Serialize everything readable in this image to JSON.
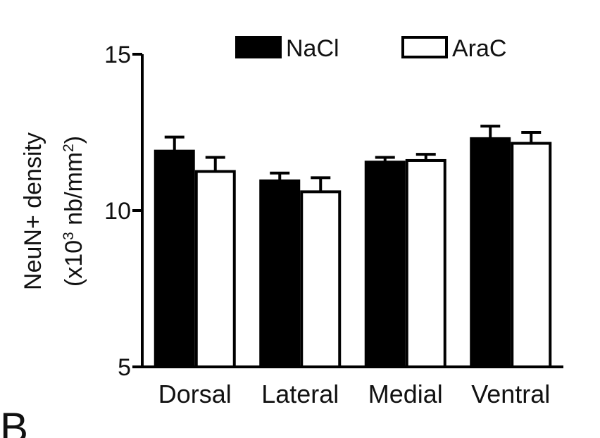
{
  "chart_data": {
    "type": "bar",
    "ylabel_line1": "NeuN+ density",
    "ylabel_line2_prefix": "(x10",
    "ylabel_line2_sup": "3",
    "ylabel_line2_mid": " nb/mm",
    "ylabel_line2_sup2": "2",
    "ylabel_line2_suffix": ")",
    "ylim": [
      5,
      15
    ],
    "yticks": [
      5,
      10,
      15
    ],
    "ytick_labels": [
      "5",
      "10",
      "15"
    ],
    "categories": [
      "Dorsal",
      "Lateral",
      "Medial",
      "Ventral"
    ],
    "legend_position": "top",
    "series": [
      {
        "name": "NaCl",
        "color": "#000000",
        "values": [
          11.9,
          10.95,
          11.55,
          12.3
        ],
        "errors": [
          0.45,
          0.25,
          0.15,
          0.4
        ]
      },
      {
        "name": "AraC",
        "color": "#ffffff",
        "values": [
          11.25,
          10.6,
          11.6,
          12.15
        ],
        "errors": [
          0.45,
          0.45,
          0.2,
          0.35
        ]
      }
    ]
  },
  "corner_letter": "B"
}
